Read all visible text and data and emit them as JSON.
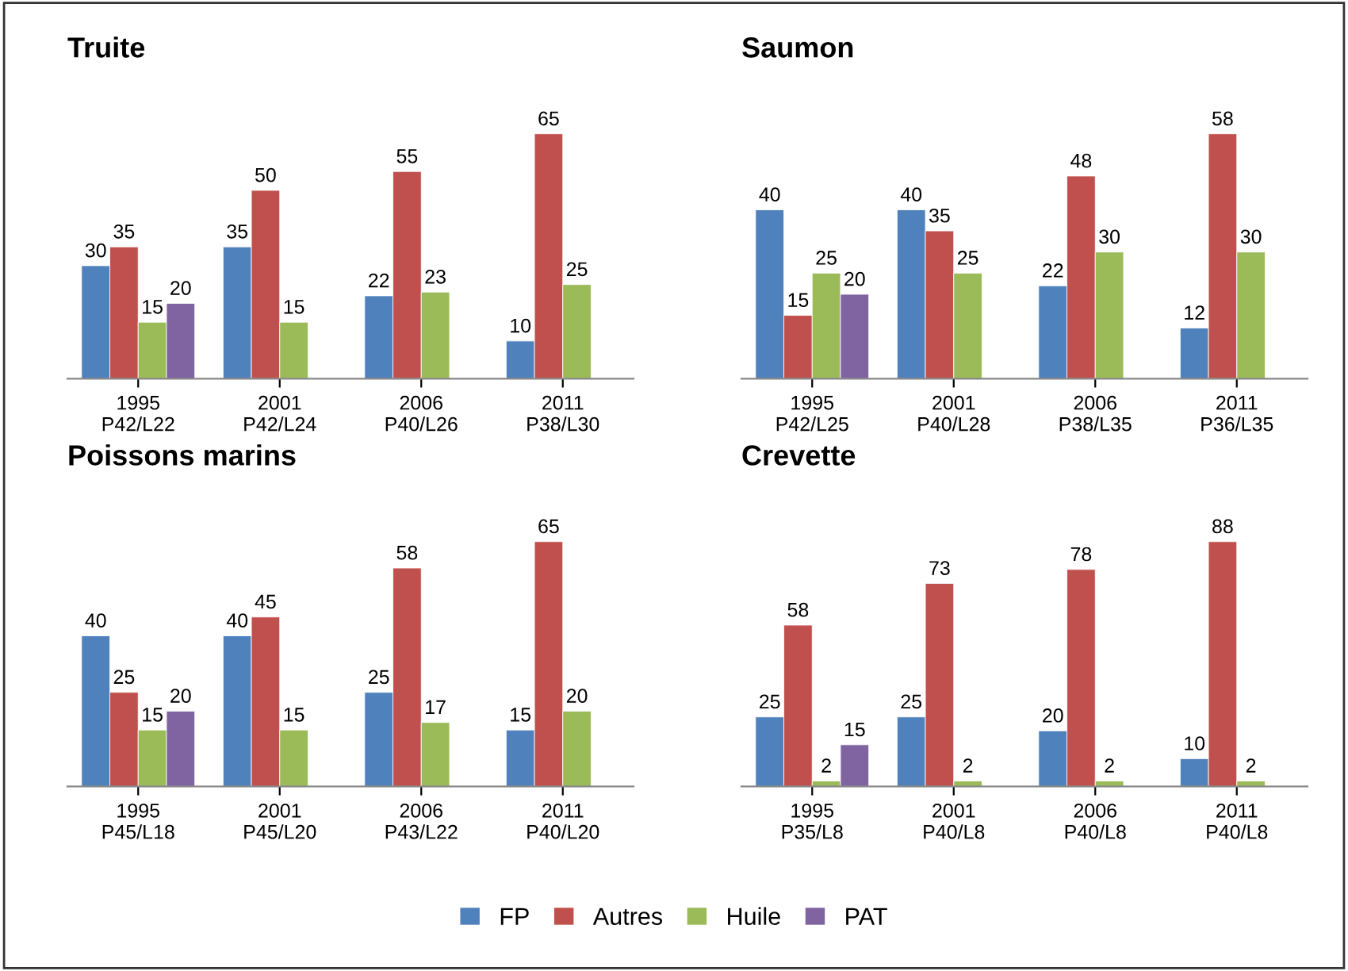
{
  "chart_data": [
    {
      "type": "bar",
      "title": "Truite",
      "categories": [
        "1995\nP42/L22",
        "2001\nP42/L24",
        "2006\nP40/L26",
        "2011\nP38/L30"
      ],
      "data_labels": true,
      "tick_labels": "x",
      "legend": "bottom",
      "series": [
        {
          "name": "FP",
          "color": "#4f81bd",
          "values": [
            30,
            35,
            22,
            10
          ]
        },
        {
          "name": "Autres",
          "color": "#c0504d",
          "values": [
            35,
            50,
            55,
            65
          ]
        },
        {
          "name": "Huile",
          "color": "#9bbb59",
          "values": [
            15,
            15,
            23,
            25
          ]
        },
        {
          "name": "PAT",
          "color": "#8064a2",
          "values": [
            20,
            null,
            null,
            null
          ]
        }
      ]
    },
    {
      "type": "bar",
      "title": "Saumon",
      "categories": [
        "1995\nP42/L25",
        "2001\nP40/L28",
        "2006\nP38/L35",
        "2011\nP36/L35"
      ],
      "data_labels": true,
      "tick_labels": "x",
      "legend": "bottom",
      "series": [
        {
          "name": "FP",
          "color": "#4f81bd",
          "values": [
            40,
            40,
            22,
            12
          ]
        },
        {
          "name": "Autres",
          "color": "#c0504d",
          "values": [
            15,
            35,
            48,
            58
          ]
        },
        {
          "name": "Huile",
          "color": "#9bbb59",
          "values": [
            25,
            25,
            30,
            30
          ]
        },
        {
          "name": "PAT",
          "color": "#8064a2",
          "values": [
            20,
            null,
            null,
            null
          ]
        }
      ]
    },
    {
      "type": "bar",
      "title": "Poissons marins",
      "categories": [
        "1995\nP45/L18",
        "2001\nP45/L20",
        "2006\nP43/L22",
        "2011\nP40/L20"
      ],
      "data_labels": true,
      "tick_labels": "x",
      "legend": "bottom",
      "series": [
        {
          "name": "FP",
          "color": "#4f81bd",
          "values": [
            40,
            40,
            25,
            15
          ]
        },
        {
          "name": "Autres",
          "color": "#c0504d",
          "values": [
            25,
            45,
            58,
            65
          ]
        },
        {
          "name": "Huile",
          "color": "#9bbb59",
          "values": [
            15,
            15,
            17,
            20
          ]
        },
        {
          "name": "PAT",
          "color": "#8064a2",
          "values": [
            20,
            null,
            null,
            null
          ]
        }
      ]
    },
    {
      "type": "bar",
      "title": "Crevette",
      "categories": [
        "1995\nP35/L8",
        "2001\nP40/L8",
        "2006\nP40/L8",
        "2011\nP40/L8"
      ],
      "data_labels": true,
      "tick_labels": "x",
      "legend": "bottom",
      "series": [
        {
          "name": "FP",
          "color": "#4f81bd",
          "values": [
            25,
            25,
            20,
            10
          ]
        },
        {
          "name": "Autres",
          "color": "#c0504d",
          "values": [
            58,
            73,
            78,
            88
          ]
        },
        {
          "name": "Huile",
          "color": "#9bbb59",
          "values": [
            2,
            2,
            2,
            2
          ]
        },
        {
          "name": "PAT",
          "color": "#8064a2",
          "values": [
            15,
            null,
            null,
            null
          ]
        }
      ]
    }
  ]
}
